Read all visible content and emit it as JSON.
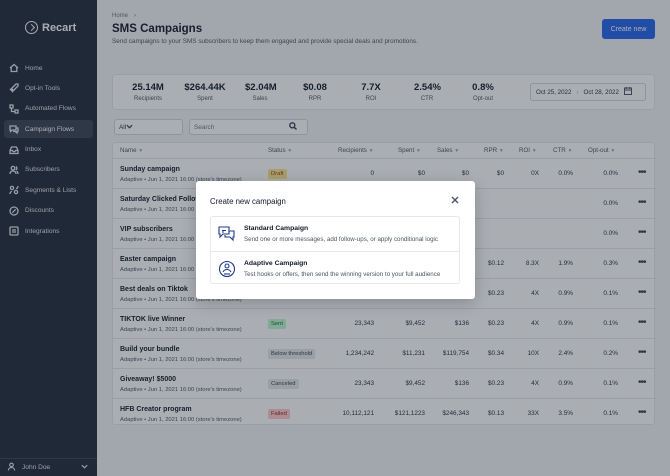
{
  "app": {
    "logo_text": "Recart"
  },
  "sidebar": {
    "items": [
      {
        "label": "Home",
        "icon": "home-icon"
      },
      {
        "label": "Opt-in Tools",
        "icon": "rocket-icon"
      },
      {
        "label": "Automated Flows",
        "icon": "flow-icon"
      },
      {
        "label": "Campaign Flows",
        "icon": "chat-icon",
        "active": true
      },
      {
        "label": "Inbox",
        "icon": "inbox-icon"
      },
      {
        "label": "Subscribers",
        "icon": "users-icon"
      },
      {
        "label": "Segments & Lists",
        "icon": "segments-icon"
      },
      {
        "label": "Discounts",
        "icon": "discount-icon"
      },
      {
        "label": "Integrations",
        "icon": "integrations-icon"
      }
    ],
    "user_name": "John Doe"
  },
  "header": {
    "breadcrumb": "Home",
    "title": "SMS Campaigns",
    "subtitle": "Send campaigns to your SMS subscribers to keep them engaged and provide special deals and promotions.",
    "create_button": "Create new"
  },
  "stats": [
    {
      "value": "25.14M",
      "label": "Recipients"
    },
    {
      "value": "$264.44K",
      "label": "Spent"
    },
    {
      "value": "$2.04M",
      "label": "Sales"
    },
    {
      "value": "$0.08",
      "label": "RPR"
    },
    {
      "value": "7.7X",
      "label": "ROI"
    },
    {
      "value": "2.54%",
      "label": "CTR"
    },
    {
      "value": "0.8%",
      "label": "Opt-out"
    }
  ],
  "date_range": {
    "start": "Oct 25, 2022",
    "end": "Oct 28, 2022"
  },
  "filters": {
    "status_value": "All",
    "search_placeholder": "Search"
  },
  "table": {
    "headers": {
      "name": "Name",
      "status": "Status",
      "recipients": "Recipients",
      "spent": "Spent",
      "sales": "Sales",
      "rpr": "RPR",
      "roi": "ROI",
      "ctr": "CTR",
      "optout": "Opt-out"
    },
    "rows": [
      {
        "name": "Sunday campaign",
        "meta": "Adaptive • Jun 1, 2021 16:00 (store's timezone)",
        "status": "Draft",
        "status_type": "draft",
        "recipients": "0",
        "spent": "$0",
        "sales": "$0",
        "rpr": "$0",
        "roi": "0X",
        "ctr": "0.0%",
        "optout": "0.0%"
      },
      {
        "name": "Saturday Clicked Follow U",
        "meta": "Adaptive • Jun 1, 2021 16:00 (store's timezone)",
        "status": "",
        "status_type": "",
        "recipients": "",
        "spent": "",
        "sales": "",
        "rpr": "",
        "roi": "",
        "ctr": "",
        "optout": "0.0%"
      },
      {
        "name": "VIP subscribers",
        "meta": "Adaptive • Jun 1, 2021 16:00 (store's timezone)",
        "status": "",
        "status_type": "",
        "recipients": "",
        "spent": "",
        "sales": "",
        "rpr": "",
        "roi": "",
        "ctr": "",
        "optout": "0.0%"
      },
      {
        "name": "Easter campaign",
        "meta": "Adaptive • Jun 1, 2021 16:00 (store's timezone)",
        "status": "",
        "status_type": "",
        "recipients": "",
        "spent": "",
        "sales": "",
        "rpr": "$0.12",
        "roi": "8.3X",
        "ctr": "1.9%",
        "optout": "0.3%"
      },
      {
        "name": "Best deals on Tiktok",
        "meta": "Adaptive • Jun 1, 2021 16:00 (store's timezone)",
        "status": "",
        "status_type": "",
        "recipients": "",
        "spent": "",
        "sales": "",
        "rpr": "$0.23",
        "roi": "4X",
        "ctr": "0.9%",
        "optout": "0.1%"
      },
      {
        "name": "TIKTOK live Winner",
        "meta": "Adaptive • Jun 1, 2021 16:00 (store's timezone)",
        "status": "Sent",
        "status_type": "sent",
        "recipients": "23,343",
        "spent": "$9,452",
        "sales": "$136",
        "rpr": "$0.23",
        "roi": "4X",
        "ctr": "0.9%",
        "optout": "0.1%"
      },
      {
        "name": "Build your bundle",
        "meta": "Adaptive • Jun 1, 2021 16:00 (store's timezone)",
        "status": "Below threshold",
        "status_type": "below",
        "recipients": "1,234,242",
        "spent": "$11,231",
        "sales": "$119,754",
        "rpr": "$0.34",
        "roi": "10X",
        "ctr": "2.4%",
        "optout": "0.2%"
      },
      {
        "name": "Giveaway! $5000",
        "meta": "Adaptive • Jun 1, 2021 16:00 (store's timezone)",
        "status": "Canceled",
        "status_type": "canceled",
        "recipients": "23,343",
        "spent": "$9,452",
        "sales": "$136",
        "rpr": "$0.23",
        "roi": "4X",
        "ctr": "0.9%",
        "optout": "0.1%"
      },
      {
        "name": "HFB Creator program",
        "meta": "Adaptive • Jun 1, 2021 16:00 (store's timezone)",
        "status": "Failed",
        "status_type": "failed",
        "recipients": "10,112,121",
        "spent": "$121,1223",
        "sales": "$246,343",
        "rpr": "$0.13",
        "roi": "33X",
        "ctr": "3.5%",
        "optout": "0.1%"
      }
    ],
    "row_menu": "•••"
  },
  "modal": {
    "title": "Create new campaign",
    "options": [
      {
        "title": "Standard Campaign",
        "description": "Send one or more messages, add follow-ups, or apply conditional logic",
        "icon": "chat-bubbles-icon"
      },
      {
        "title": "Adaptive Campaign",
        "description": "Test hooks or offers, then send the winning version to your full audience",
        "icon": "adaptive-icon"
      }
    ]
  },
  "colors": {
    "sidebar_bg": "#1f2937",
    "accent": "#2563eb",
    "overlay": "rgba(31,41,55,0.38)"
  }
}
